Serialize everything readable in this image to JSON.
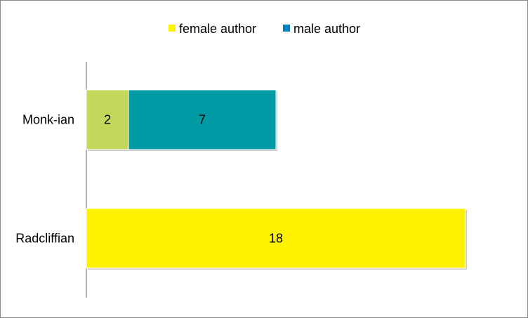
{
  "chart_data": {
    "type": "bar",
    "orientation": "horizontal",
    "stacked": true,
    "categories": [
      "Monk-ian",
      "Radcliffian"
    ],
    "series": [
      {
        "name": "female author",
        "values": [
          2,
          18
        ],
        "color": "#fff200"
      },
      {
        "name": "male author",
        "values": [
          7,
          0
        ],
        "color": "#0099b0"
      }
    ],
    "segment_colors": {
      "Monk-ian": [
        "#c3d85a",
        "#009aa5"
      ],
      "Radcliffian": [
        "#fff200",
        "#009aa5"
      ]
    },
    "legend_marker_colors": [
      "#fff200",
      "#0080c0"
    ],
    "value_labels": [
      [
        "2",
        "7"
      ],
      [
        "18",
        ""
      ]
    ],
    "xlim": [
      0,
      18
    ],
    "legend_position": "top",
    "grid": false
  }
}
